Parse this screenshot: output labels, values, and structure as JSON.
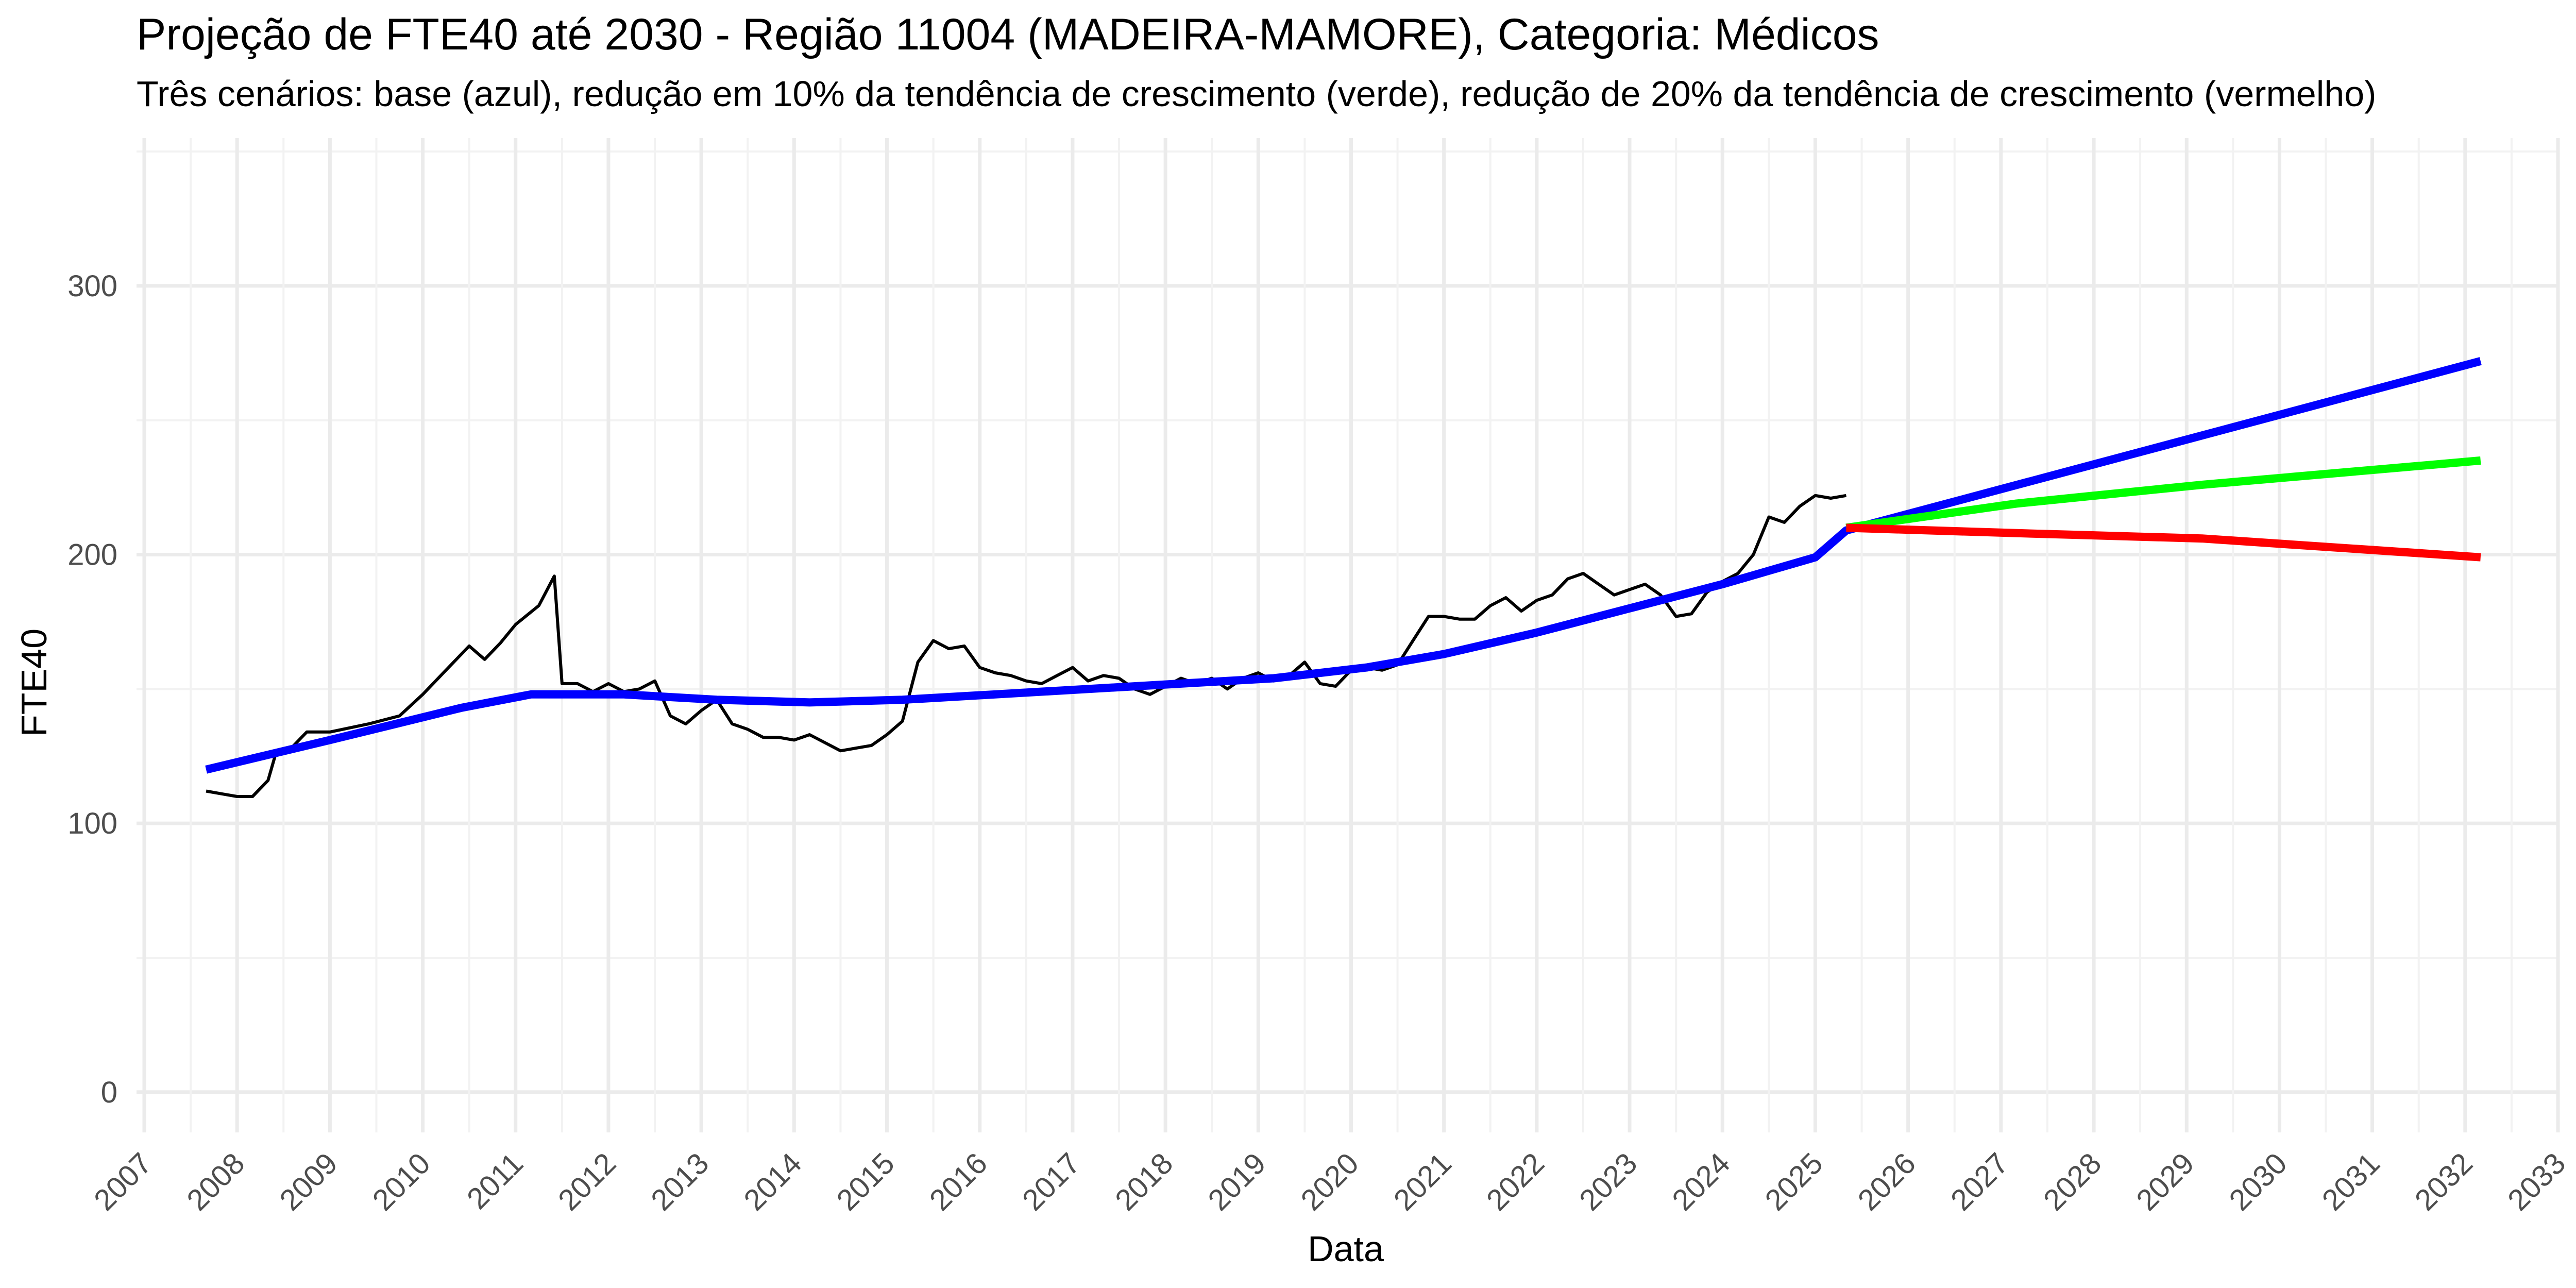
{
  "chart_data": {
    "type": "line",
    "title": "Projeção de FTE40 até 2030 - Região 11004 (MADEIRA-MAMORE), Categoria: Médicos",
    "subtitle": "Três cenários: base (azul), redução em 10% da tendência de crescimento (verde), redução de 20% da tendência de crescimento (vermelho)",
    "xlabel": "Data",
    "ylabel": "FTE40",
    "xlim": [
      "2006-12",
      "2033-01"
    ],
    "ylim": [
      -15,
      355
    ],
    "grid": true,
    "legend": "none",
    "x_ticks": [
      "2007",
      "2008",
      "2009",
      "2010",
      "2011",
      "2012",
      "2013",
      "2014",
      "2015",
      "2016",
      "2017",
      "2018",
      "2019",
      "2020",
      "2021",
      "2022",
      "2023",
      "2024",
      "2025",
      "2026",
      "2027",
      "2028",
      "2029",
      "2030",
      "2031",
      "2032",
      "2033"
    ],
    "y_ticks": [
      "0",
      "100",
      "200",
      "300"
    ],
    "series": [
      {
        "color": "#000000",
        "points": [
          [
            "2007-09",
            112
          ],
          [
            "2007-11",
            111
          ],
          [
            "2008-01",
            110
          ],
          [
            "2008-03",
            110
          ],
          [
            "2008-05",
            116
          ],
          [
            "2008-06",
            126
          ],
          [
            "2008-08",
            128
          ],
          [
            "2008-10",
            134
          ],
          [
            "2009-01",
            134
          ],
          [
            "2009-06",
            137
          ],
          [
            "2009-10",
            140
          ],
          [
            "2010-01",
            148
          ],
          [
            "2010-04",
            157
          ],
          [
            "2010-07",
            166
          ],
          [
            "2010-09",
            161
          ],
          [
            "2010-11",
            167
          ],
          [
            "2011-01",
            174
          ],
          [
            "2011-04",
            181
          ],
          [
            "2011-06",
            192
          ],
          [
            "2011-07",
            152
          ],
          [
            "2011-09",
            152
          ],
          [
            "2011-11",
            149
          ],
          [
            "2012-01",
            152
          ],
          [
            "2012-03",
            149
          ],
          [
            "2012-05",
            150
          ],
          [
            "2012-07",
            153
          ],
          [
            "2012-09",
            140
          ],
          [
            "2012-11",
            137
          ],
          [
            "2013-01",
            142
          ],
          [
            "2013-03",
            146
          ],
          [
            "2013-05",
            137
          ],
          [
            "2013-07",
            135
          ],
          [
            "2013-09",
            132
          ],
          [
            "2013-11",
            132
          ],
          [
            "2014-01",
            131
          ],
          [
            "2014-03",
            133
          ],
          [
            "2014-05",
            130
          ],
          [
            "2014-07",
            127
          ],
          [
            "2014-09",
            128
          ],
          [
            "2014-11",
            129
          ],
          [
            "2015-01",
            133
          ],
          [
            "2015-03",
            138
          ],
          [
            "2015-05",
            160
          ],
          [
            "2015-07",
            168
          ],
          [
            "2015-09",
            165
          ],
          [
            "2015-11",
            166
          ],
          [
            "2016-01",
            158
          ],
          [
            "2016-03",
            156
          ],
          [
            "2016-05",
            155
          ],
          [
            "2016-07",
            153
          ],
          [
            "2016-09",
            152
          ],
          [
            "2016-11",
            155
          ],
          [
            "2017-01",
            158
          ],
          [
            "2017-03",
            153
          ],
          [
            "2017-05",
            155
          ],
          [
            "2017-07",
            154
          ],
          [
            "2017-09",
            150
          ],
          [
            "2017-11",
            148
          ],
          [
            "2018-01",
            151
          ],
          [
            "2018-03",
            154
          ],
          [
            "2018-05",
            152
          ],
          [
            "2018-07",
            154
          ],
          [
            "2018-09",
            150
          ],
          [
            "2018-11",
            154
          ],
          [
            "2019-01",
            156
          ],
          [
            "2019-03",
            153
          ],
          [
            "2019-05",
            155
          ],
          [
            "2019-07",
            160
          ],
          [
            "2019-09",
            152
          ],
          [
            "2019-11",
            151
          ],
          [
            "2020-01",
            157
          ],
          [
            "2020-03",
            158
          ],
          [
            "2020-05",
            157
          ],
          [
            "2020-07",
            159
          ],
          [
            "2020-09",
            168
          ],
          [
            "2020-11",
            177
          ],
          [
            "2021-01",
            177
          ],
          [
            "2021-03",
            176
          ],
          [
            "2021-05",
            176
          ],
          [
            "2021-07",
            181
          ],
          [
            "2021-09",
            184
          ],
          [
            "2021-11",
            179
          ],
          [
            "2022-01",
            183
          ],
          [
            "2022-03",
            185
          ],
          [
            "2022-05",
            191
          ],
          [
            "2022-07",
            193
          ],
          [
            "2022-09",
            189
          ],
          [
            "2022-11",
            185
          ],
          [
            "2023-01",
            187
          ],
          [
            "2023-03",
            189
          ],
          [
            "2023-05",
            185
          ],
          [
            "2023-07",
            177
          ],
          [
            "2023-09",
            178
          ],
          [
            "2023-11",
            186
          ],
          [
            "2024-01",
            190
          ],
          [
            "2024-03",
            193
          ],
          [
            "2024-05",
            200
          ],
          [
            "2024-07",
            214
          ],
          [
            "2024-09",
            212
          ],
          [
            "2024-11",
            218
          ],
          [
            "2025-01",
            222
          ],
          [
            "2025-03",
            221
          ],
          [
            "2025-05",
            222
          ]
        ]
      },
      {
        "color": "#0000ff",
        "points": [
          [
            "2007-09",
            120
          ],
          [
            "2009-01",
            131
          ],
          [
            "2010-06",
            143
          ],
          [
            "2011-03",
            148
          ],
          [
            "2012-03",
            148
          ],
          [
            "2013-03",
            146
          ],
          [
            "2014-03",
            145
          ],
          [
            "2015-03",
            146
          ],
          [
            "2016-03",
            148
          ],
          [
            "2017-03",
            150
          ],
          [
            "2018-03",
            152
          ],
          [
            "2019-03",
            154
          ],
          [
            "2020-03",
            158
          ],
          [
            "2021-01",
            163
          ],
          [
            "2022-01",
            171
          ],
          [
            "2023-01",
            180
          ],
          [
            "2024-01",
            189
          ],
          [
            "2025-01",
            199
          ],
          [
            "2025-05",
            209
          ],
          [
            "2032-03",
            272
          ]
        ]
      },
      {
        "color": "#00ff00",
        "points": [
          [
            "2025-05",
            210
          ],
          [
            "2027-03",
            219
          ],
          [
            "2029-03",
            226
          ],
          [
            "2032-03",
            235
          ]
        ]
      },
      {
        "color": "#ff0000",
        "points": [
          [
            "2025-05",
            210
          ],
          [
            "2027-03",
            208
          ],
          [
            "2029-03",
            206
          ],
          [
            "2032-03",
            199
          ]
        ]
      }
    ]
  }
}
